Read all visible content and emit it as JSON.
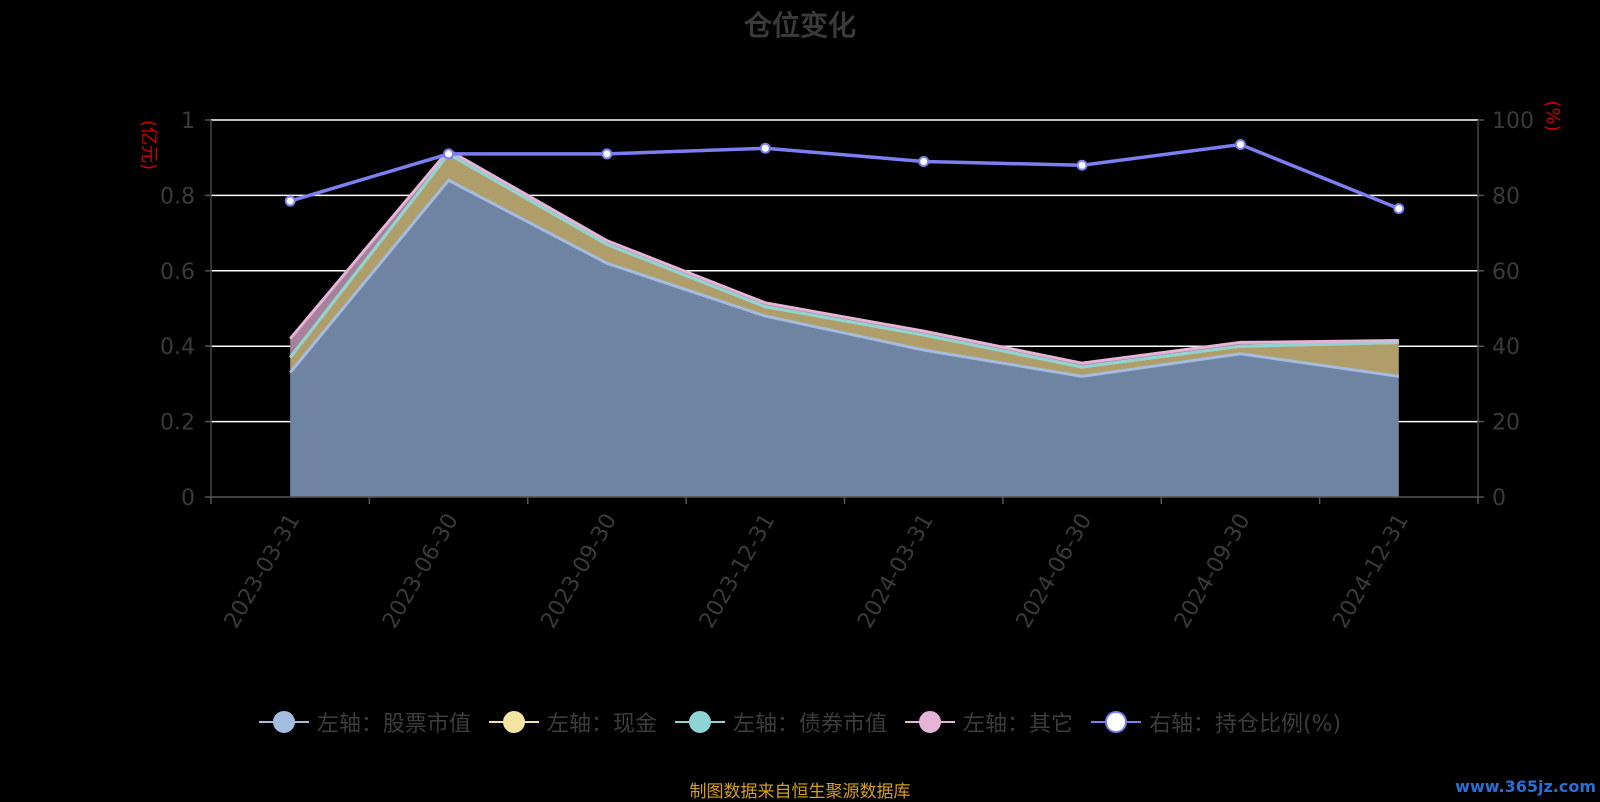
{
  "chart_data": {
    "type": "area",
    "title": "仓位变化",
    "left_axis_unit": "(亿元)",
    "right_axis_unit": "(%)",
    "categories": [
      "2023-03-31",
      "2023-06-30",
      "2023-09-30",
      "2023-12-31",
      "2024-03-31",
      "2024-06-30",
      "2024-09-30",
      "2024-12-31"
    ],
    "left_ylim": [
      0,
      1
    ],
    "left_ticks": [
      "0",
      "0.2",
      "0.4",
      "0.6",
      "0.8",
      "1"
    ],
    "right_ylim": [
      0,
      100
    ],
    "right_ticks": [
      "0",
      "20",
      "40",
      "60",
      "80",
      "100"
    ],
    "grid": true,
    "legend_position": "bottom",
    "series": [
      {
        "name": "左轴：股票市值",
        "axis": "left",
        "kind": "stacked-area",
        "color": "#a3bce0",
        "values": [
          0.33,
          0.84,
          0.62,
          0.48,
          0.39,
          0.32,
          0.38,
          0.32
        ]
      },
      {
        "name": "左轴：现金",
        "axis": "left",
        "kind": "stacked-area",
        "color": "#f4e4a2",
        "values": [
          0.04,
          0.07,
          0.05,
          0.025,
          0.04,
          0.025,
          0.02,
          0.09
        ]
      },
      {
        "name": "左轴：债券市值",
        "axis": "left",
        "kind": "stacked-area",
        "color": "#8fd4d4",
        "values": [
          0.0,
          0.0,
          0.0,
          0.0,
          0.0,
          0.0,
          0.0,
          0.0
        ]
      },
      {
        "name": "左轴：其它",
        "axis": "left",
        "kind": "stacked-area",
        "color": "#e6b4d6",
        "values": [
          0.05,
          0.01,
          0.01,
          0.01,
          0.01,
          0.01,
          0.01,
          0.005
        ]
      },
      {
        "name": "右轴：持仓比例(%)",
        "axis": "right",
        "kind": "line",
        "color": "#7b7ff2",
        "values": [
          78.5,
          91,
          91,
          92.5,
          89,
          88,
          93.5,
          76.5
        ]
      }
    ]
  },
  "legend": {
    "items": [
      {
        "label": "左轴：股票市值",
        "color": "#a3bce0",
        "dot": "#a3bce0"
      },
      {
        "label": "左轴：现金",
        "color": "#f4e4a2",
        "dot": "#f4e4a2"
      },
      {
        "label": "左轴：债券市值",
        "color": "#8fd4d4",
        "dot": "#8fd4d4"
      },
      {
        "label": "左轴：其它",
        "color": "#e6b4d6",
        "dot": "#e6b4d6"
      },
      {
        "label": "右轴：持仓比例(%)",
        "color": "#7b7ff2",
        "dot": "#ffffff"
      }
    ]
  },
  "footer": {
    "source": "制图数据来自恒生聚源数据库",
    "watermark": "www.365jz.com"
  }
}
